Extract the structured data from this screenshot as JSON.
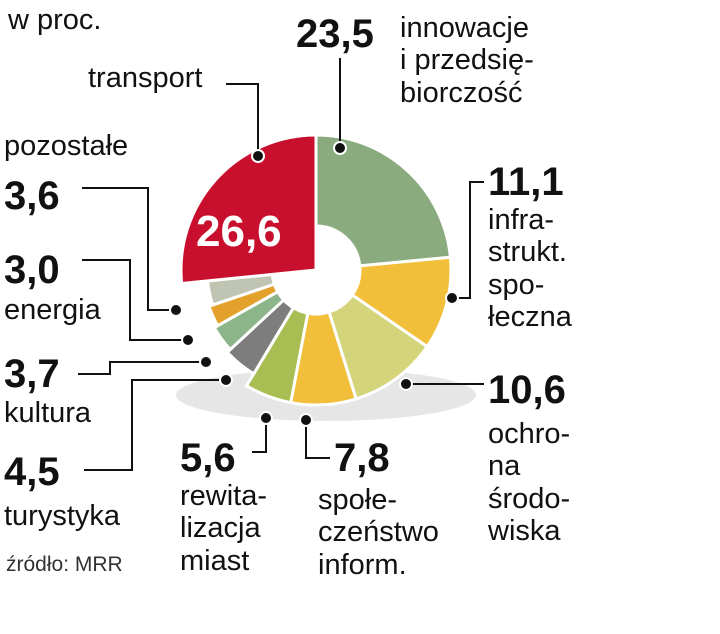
{
  "unit_label": "w proc.",
  "source": "źródło: MRR",
  "chart_data": {
    "type": "pie",
    "variant": "donut",
    "categories": [
      "innowacje i przedsiębiorczość",
      "infrastrukt. społeczna",
      "ochrona środowiska",
      "społeczeństwo inform.",
      "rewitalizacja miast",
      "turystyka",
      "kultura",
      "energia",
      "pozostałe",
      "transport"
    ],
    "values": [
      23.5,
      11.1,
      10.6,
      7.8,
      5.6,
      4.5,
      3.7,
      3.0,
      3.6,
      26.6
    ],
    "colors": [
      "#8aab7d",
      "#f2bf3a",
      "#d4d47a",
      "#f2bf3a",
      "#a8be52",
      "#7d7d7d",
      "#8cb58a",
      "#e3a12c",
      "#bfc4b3",
      "#c8102e"
    ],
    "highlight": "transport",
    "labels": [
      {
        "value": "23,5",
        "text": "innowacje\ni przedsię-\nbiorczość"
      },
      {
        "value": "11,1",
        "text": "infra-\nstrukt.\nspo-\nłeczna"
      },
      {
        "value": "10,6",
        "text": "ochro-\nna\nśrodo-\nwiska"
      },
      {
        "value": "7,8",
        "text": "społe-\nczeństwo\ninform."
      },
      {
        "value": "5,6",
        "text": "rewita-\nlizacja\nmiast"
      },
      {
        "value": "4,5",
        "text": "turystyka"
      },
      {
        "value": "3,7",
        "text": "kultura"
      },
      {
        "value": "3,0",
        "text": "energia"
      },
      {
        "value": "3,6",
        "text": "pozostałe"
      },
      {
        "value": "26,6",
        "text": "transport"
      }
    ]
  }
}
